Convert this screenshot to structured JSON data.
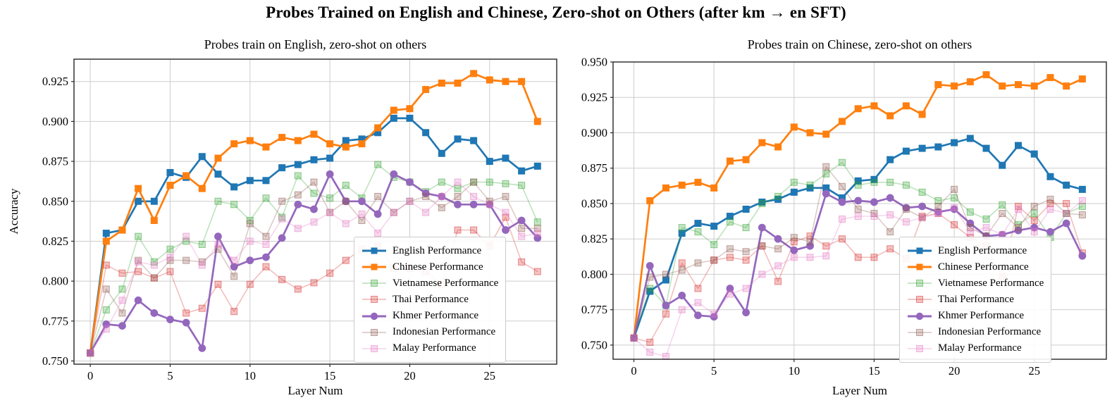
{
  "figure": {
    "title": "Probes Trained on English and Chinese, Zero-shot on Others (after km → en SFT)"
  },
  "chart_data": [
    {
      "type": "line",
      "title": "Probes train on English, zero-shot on others",
      "xlabel": "Layer Num",
      "ylabel": "Accuracy",
      "x": [
        0,
        1,
        2,
        3,
        4,
        5,
        6,
        7,
        8,
        9,
        10,
        11,
        12,
        13,
        14,
        15,
        16,
        17,
        18,
        19,
        20,
        21,
        22,
        23,
        24,
        25,
        26,
        27,
        28
      ],
      "xticks": [
        0,
        5,
        10,
        15,
        20,
        25
      ],
      "yticks": [
        0.75,
        0.775,
        0.8,
        0.825,
        0.85,
        0.875,
        0.9,
        0.925
      ],
      "xlim": [
        -1.02,
        29.2
      ],
      "ylim": [
        0.748,
        0.939
      ],
      "grid": true,
      "legend_position": "lower right",
      "series": [
        {
          "name": "English Performance",
          "color": "#1f77b4",
          "marker": "square",
          "faded": false,
          "values": [
            0.755,
            0.83,
            0.832,
            0.85,
            0.85,
            0.868,
            0.865,
            0.878,
            0.867,
            0.859,
            0.863,
            0.863,
            0.871,
            0.873,
            0.876,
            0.877,
            0.888,
            0.889,
            0.893,
            0.902,
            0.902,
            0.893,
            0.88,
            0.889,
            0.888,
            0.875,
            0.877,
            0.869,
            0.872
          ]
        },
        {
          "name": "Chinese Performance",
          "color": "#ff7f0e",
          "marker": "square",
          "faded": false,
          "values": [
            0.755,
            0.825,
            0.832,
            0.858,
            0.838,
            0.86,
            0.866,
            0.858,
            0.877,
            0.886,
            0.888,
            0.884,
            0.89,
            0.888,
            0.892,
            0.886,
            0.884,
            0.886,
            0.896,
            0.907,
            0.908,
            0.92,
            0.924,
            0.924,
            0.93,
            0.926,
            0.925,
            0.925,
            0.9
          ]
        },
        {
          "name": "Vietnamese Performance",
          "color": "#2ca02c",
          "marker": "square",
          "faded": true,
          "values": [
            0.755,
            0.782,
            0.795,
            0.828,
            0.812,
            0.82,
            0.825,
            0.823,
            0.85,
            0.848,
            0.838,
            0.852,
            0.84,
            0.866,
            0.855,
            0.852,
            0.86,
            0.852,
            0.873,
            0.865,
            0.862,
            0.856,
            0.862,
            0.858,
            0.862,
            0.862,
            0.861,
            0.86,
            0.837
          ]
        },
        {
          "name": "Thai Performance",
          "color": "#d62728",
          "marker": "square",
          "faded": true,
          "values": [
            0.755,
            0.81,
            0.805,
            0.806,
            0.802,
            0.806,
            0.78,
            0.783,
            0.798,
            0.781,
            0.798,
            0.809,
            0.801,
            0.795,
            0.799,
            0.805,
            0.813,
            0.82,
            0.822,
            0.808,
            0.808,
            0.806,
            0.798,
            0.832,
            0.832,
            0.822,
            0.84,
            0.812,
            0.806
          ]
        },
        {
          "name": "Khmer Performance",
          "color": "#9467bd",
          "marker": "circle",
          "faded": false,
          "values": [
            0.755,
            0.773,
            0.772,
            0.788,
            0.78,
            0.776,
            0.774,
            0.758,
            0.828,
            0.809,
            0.813,
            0.815,
            0.827,
            0.848,
            0.845,
            0.867,
            0.85,
            0.85,
            0.842,
            0.867,
            0.862,
            0.855,
            0.853,
            0.848,
            0.848,
            0.848,
            0.832,
            0.838,
            0.827
          ]
        },
        {
          "name": "Indonesian Performance",
          "color": "#8c564b",
          "marker": "square",
          "faded": true,
          "values": [
            0.755,
            0.795,
            0.78,
            0.813,
            0.802,
            0.813,
            0.813,
            0.812,
            0.82,
            0.803,
            0.836,
            0.828,
            0.85,
            0.854,
            0.862,
            0.843,
            0.85,
            0.838,
            0.853,
            0.843,
            0.85,
            0.853,
            0.846,
            0.853,
            0.862,
            0.85,
            0.853,
            0.833,
            0.833
          ]
        },
        {
          "name": "Malay Performance",
          "color": "#e377c2",
          "marker": "square",
          "faded": true,
          "values": [
            0.755,
            0.77,
            0.788,
            0.812,
            0.81,
            0.815,
            0.828,
            0.81,
            0.823,
            0.813,
            0.825,
            0.823,
            0.839,
            0.833,
            0.837,
            0.843,
            0.836,
            0.842,
            0.83,
            0.843,
            0.85,
            0.843,
            0.853,
            0.862,
            0.853,
            0.848,
            0.843,
            0.828,
            0.83
          ]
        }
      ]
    },
    {
      "type": "line",
      "title": "Probes train on Chinese, zero-shot on others",
      "xlabel": "Layer Num",
      "ylabel": "",
      "x": [
        0,
        1,
        2,
        3,
        4,
        5,
        6,
        7,
        8,
        9,
        10,
        11,
        12,
        13,
        14,
        15,
        16,
        17,
        18,
        19,
        20,
        21,
        22,
        23,
        24,
        25,
        26,
        27,
        28
      ],
      "xticks": [
        0,
        5,
        10,
        15,
        20,
        25
      ],
      "yticks": [
        0.75,
        0.775,
        0.8,
        0.825,
        0.85,
        0.875,
        0.9,
        0.925,
        0.95
      ],
      "xlim": [
        -1.3,
        29.5
      ],
      "ylim": [
        0.74,
        0.95
      ],
      "grid": true,
      "legend_position": "lower right",
      "series": [
        {
          "name": "English Performance",
          "color": "#1f77b4",
          "marker": "square",
          "faded": false,
          "values": [
            0.755,
            0.788,
            0.796,
            0.829,
            0.836,
            0.834,
            0.841,
            0.846,
            0.851,
            0.853,
            0.858,
            0.861,
            0.861,
            0.854,
            0.866,
            0.867,
            0.881,
            0.887,
            0.889,
            0.89,
            0.893,
            0.896,
            0.889,
            0.877,
            0.891,
            0.885,
            0.869,
            0.863,
            0.86
          ]
        },
        {
          "name": "Chinese Performance",
          "color": "#ff7f0e",
          "marker": "square",
          "faded": false,
          "values": [
            0.755,
            0.852,
            0.861,
            0.863,
            0.865,
            0.861,
            0.88,
            0.881,
            0.893,
            0.89,
            0.904,
            0.9,
            0.899,
            0.908,
            0.917,
            0.919,
            0.912,
            0.919,
            0.913,
            0.934,
            0.933,
            0.936,
            0.941,
            0.933,
            0.934,
            0.933,
            0.939,
            0.933,
            0.938
          ]
        },
        {
          "name": "Vietnamese Performance",
          "color": "#2ca02c",
          "marker": "square",
          "faded": true,
          "values": [
            0.755,
            0.79,
            0.778,
            0.833,
            0.83,
            0.821,
            0.837,
            0.833,
            0.85,
            0.855,
            0.865,
            0.863,
            0.871,
            0.879,
            0.863,
            0.865,
            0.865,
            0.863,
            0.858,
            0.852,
            0.854,
            0.844,
            0.839,
            0.849,
            0.835,
            0.843,
            0.826,
            0.843,
            0.848
          ]
        },
        {
          "name": "Thai Performance",
          "color": "#d62728",
          "marker": "square",
          "faded": true,
          "values": [
            0.755,
            0.752,
            0.772,
            0.808,
            0.79,
            0.81,
            0.812,
            0.81,
            0.82,
            0.795,
            0.823,
            0.827,
            0.82,
            0.825,
            0.812,
            0.812,
            0.818,
            0.811,
            0.841,
            0.843,
            0.835,
            0.826,
            0.82,
            0.798,
            0.848,
            0.838,
            0.85,
            0.85,
            0.815
          ]
        },
        {
          "name": "Khmer Performance",
          "color": "#9467bd",
          "marker": "circle",
          "faded": false,
          "values": [
            0.755,
            0.806,
            0.778,
            0.785,
            0.771,
            0.77,
            0.79,
            0.773,
            0.833,
            0.825,
            0.817,
            0.82,
            0.857,
            0.851,
            0.852,
            0.851,
            0.854,
            0.847,
            0.848,
            0.844,
            0.846,
            0.836,
            0.827,
            0.828,
            0.831,
            0.833,
            0.83,
            0.836,
            0.813
          ]
        },
        {
          "name": "Indonesian Performance",
          "color": "#8c564b",
          "marker": "square",
          "faded": true,
          "values": [
            0.755,
            0.798,
            0.8,
            0.803,
            0.808,
            0.81,
            0.818,
            0.816,
            0.82,
            0.818,
            0.826,
            0.823,
            0.876,
            0.862,
            0.846,
            0.843,
            0.83,
            0.846,
            0.84,
            0.848,
            0.86,
            0.833,
            0.827,
            0.843,
            0.833,
            0.848,
            0.853,
            0.843,
            0.842
          ]
        },
        {
          "name": "Malay Performance",
          "color": "#e377c2",
          "marker": "square",
          "faded": true,
          "values": [
            0.755,
            0.745,
            0.742,
            0.775,
            0.78,
            0.772,
            0.786,
            0.79,
            0.8,
            0.806,
            0.812,
            0.812,
            0.813,
            0.839,
            0.841,
            0.841,
            0.842,
            0.837,
            0.84,
            0.843,
            0.847,
            0.83,
            0.833,
            0.828,
            0.846,
            0.83,
            0.846,
            0.843,
            0.852
          ]
        }
      ]
    }
  ]
}
